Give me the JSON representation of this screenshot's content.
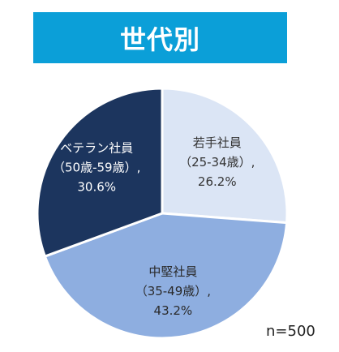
{
  "chart_data": {
    "type": "pie",
    "title": "世代別",
    "note": "n=500",
    "slices": [
      {
        "name": "若手社員",
        "range": "（25-34歳）,",
        "value": 26.2,
        "value_label": "26.2%",
        "color": "#dbe5f5",
        "text_color": "#333333"
      },
      {
        "name": "中堅社員",
        "range": "（35-49歳）,",
        "value": 43.2,
        "value_label": "43.2%",
        "color": "#8eaee0",
        "text_color": "#2a2a2a"
      },
      {
        "name": "ベテラン社員",
        "range": "（50歳-59歳）,",
        "value": 30.6,
        "value_label": "30.6%",
        "color": "#1c355e",
        "text_color": "#ffffff"
      }
    ]
  }
}
